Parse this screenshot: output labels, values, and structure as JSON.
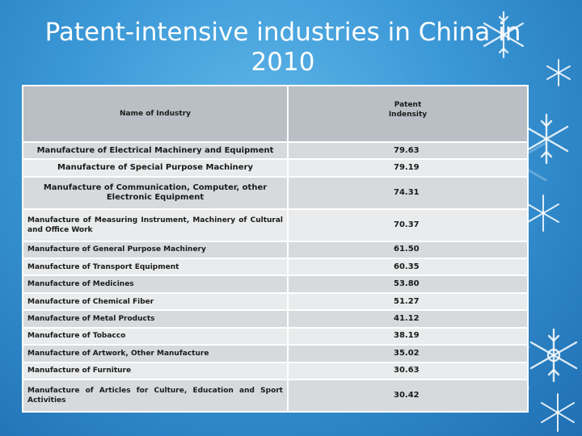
{
  "slide": {
    "title": "Patent-intensive industries in China in 2010"
  },
  "table": {
    "headers": [
      "Name of Industry",
      "Patent Indensity"
    ],
    "rows": [
      {
        "industry": "Manufacture of Electrical Machinery and Equipment",
        "density": "79.63"
      },
      {
        "industry": "Manufacture of Special Purpose Machinery",
        "density": "79.19"
      },
      {
        "industry": "Manufacture of Communication, Computer, other Electronic Equipment",
        "density": "74.31"
      },
      {
        "industry": "Manufacture of Measuring Instrument, Machinery of Cultural and Office Work",
        "density": "70.37"
      },
      {
        "industry": "Manufacture of General Purpose Machinery",
        "density": "61.50"
      },
      {
        "industry": "Manufacture of Transport Equipment",
        "density": "60.35"
      },
      {
        "industry": "Manufacture of Medicines",
        "density": "53.80"
      },
      {
        "industry": "Manufacture of Chemical Fiber",
        "density": "51.27"
      },
      {
        "industry": "Manufacture of Metal Products",
        "density": "41.12"
      },
      {
        "industry": "Manufacture of Tobacco",
        "density": "38.19"
      },
      {
        "industry": "Manufacture of Artwork, Other Manufacture",
        "density": "35.02"
      },
      {
        "industry": "Manufacture of Furniture",
        "density": "30.63"
      },
      {
        "industry": "Manufacture of Articles for Culture, Education and Sport Activities",
        "density": "30.42"
      }
    ]
  },
  "colors": {
    "background": "#3a97d6",
    "header_cell": "#b9bfc4",
    "row_light": "#e9ebec",
    "row_dark": "#d7dadd"
  }
}
